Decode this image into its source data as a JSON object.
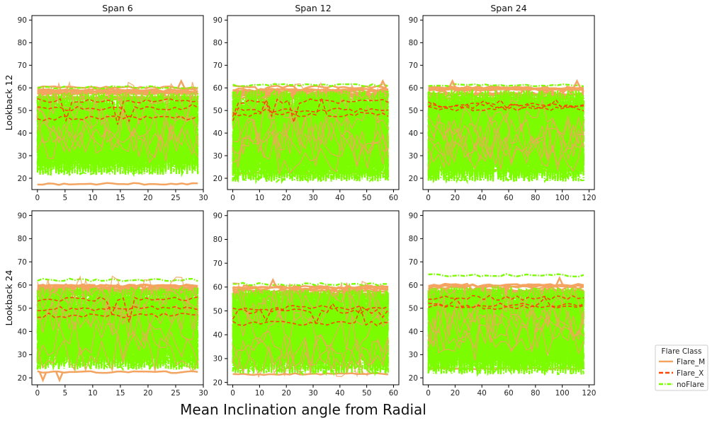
{
  "figure": {
    "xlabel": "Mean Inclination angle from Radial",
    "legend": {
      "title": "Flare Class",
      "placement": "lower-right, outside axes",
      "entries": [
        {
          "name": "Flare_M",
          "color": "#f4a460",
          "style": "solid"
        },
        {
          "name": "Flare_X",
          "color": "#ff4500",
          "style": "dashed"
        },
        {
          "name": "noFlare",
          "color": "#7cfc00",
          "style": "dashdot"
        }
      ]
    }
  },
  "chart_data": [
    {
      "type": "line",
      "title": "Span 6",
      "ylabel": "Lookback 12",
      "xlim": [
        -1,
        30
      ],
      "ylim": [
        15,
        92
      ],
      "xticks": [
        0,
        5,
        10,
        15,
        20,
        25,
        30
      ],
      "yticks": [
        20,
        30,
        40,
        50,
        60,
        70,
        80,
        90
      ],
      "series": [
        {
          "name": "Flare_M",
          "band": [
            17,
            63
          ],
          "notable": [
            {
              "x": 26,
              "y": 63
            }
          ],
          "lower_edge": 17.5
        },
        {
          "name": "Flare_X",
          "band": [
            42,
            55
          ]
        },
        {
          "name": "noFlare",
          "band": [
            20,
            61
          ]
        }
      ]
    },
    {
      "type": "line",
      "title": "Span 12",
      "ylabel": "",
      "xlim": [
        -2,
        62
      ],
      "ylim": [
        15,
        92
      ],
      "xticks": [
        0,
        10,
        20,
        30,
        40,
        50,
        60
      ],
      "yticks": [
        20,
        30,
        40,
        50,
        60,
        70,
        80,
        90
      ],
      "series": [
        {
          "name": "Flare_M",
          "band": [
            22,
            63
          ],
          "notable": [
            {
              "x": 56,
              "y": 63
            }
          ],
          "lower_edge": 22.5
        },
        {
          "name": "Flare_X",
          "band": [
            44,
            56
          ]
        },
        {
          "name": "noFlare",
          "band": [
            17,
            62
          ]
        }
      ]
    },
    {
      "type": "line",
      "title": "Span 24",
      "ylabel": "",
      "xlim": [
        -4,
        124
      ],
      "ylim": [
        15,
        92
      ],
      "xticks": [
        0,
        20,
        40,
        60,
        80,
        100,
        120
      ],
      "yticks": [
        20,
        30,
        40,
        50,
        60,
        70,
        80,
        90
      ],
      "series": [
        {
          "name": "Flare_M",
          "band": [
            23,
            63
          ],
          "notable": [
            {
              "x": 18,
              "y": 63
            },
            {
              "x": 111,
              "y": 63
            }
          ],
          "lower_edge": 23.5
        },
        {
          "name": "Flare_X",
          "band": [
            50,
            55
          ]
        },
        {
          "name": "noFlare",
          "band": [
            17,
            62
          ]
        }
      ]
    },
    {
      "type": "line",
      "title": "",
      "ylabel": "Lookback 24",
      "xlim": [
        -1,
        30
      ],
      "ylim": [
        17,
        92
      ],
      "xticks": [
        0,
        5,
        10,
        15,
        20,
        25,
        30
      ],
      "yticks": [
        20,
        30,
        40,
        50,
        60,
        70,
        80,
        90
      ],
      "series": [
        {
          "name": "Flare_M",
          "band": [
            19,
            63
          ],
          "notable": [
            {
              "x": 1,
              "y": 19
            },
            {
              "x": 4,
              "y": 19
            }
          ],
          "lower_edge": 22.5
        },
        {
          "name": "Flare_X",
          "band": [
            40,
            56
          ]
        },
        {
          "name": "noFlare",
          "band": [
            22,
            63
          ]
        }
      ]
    },
    {
      "type": "line",
      "title": "",
      "ylabel": "",
      "xlim": [
        -2,
        62
      ],
      "ylim": [
        19,
        92
      ],
      "xticks": [
        0,
        10,
        20,
        30,
        40,
        50,
        60
      ],
      "yticks": [
        20,
        30,
        40,
        50,
        60,
        70,
        80,
        90
      ],
      "series": [
        {
          "name": "Flare_M",
          "band": [
            22,
            63
          ],
          "notable": [
            {
              "x": 15,
              "y": 63
            }
          ],
          "lower_edge": 23.5
        },
        {
          "name": "Flare_X",
          "band": [
            44,
            54
          ]
        },
        {
          "name": "noFlare",
          "band": [
            22,
            62
          ]
        }
      ]
    },
    {
      "type": "line",
      "title": "",
      "ylabel": "",
      "xlim": [
        -4,
        124
      ],
      "ylim": [
        17,
        92
      ],
      "xticks": [
        0,
        20,
        40,
        60,
        80,
        100,
        120
      ],
      "yticks": [
        20,
        30,
        40,
        50,
        60,
        70,
        80,
        90
      ],
      "series": [
        {
          "name": "Flare_M",
          "band": [
            22,
            63
          ],
          "notable": [
            {
              "x": 98,
              "y": 63
            }
          ],
          "lower_edge": 24
        },
        {
          "name": "Flare_X",
          "band": [
            50,
            56
          ]
        },
        {
          "name": "noFlare",
          "band": [
            20,
            65
          ]
        }
      ]
    }
  ]
}
